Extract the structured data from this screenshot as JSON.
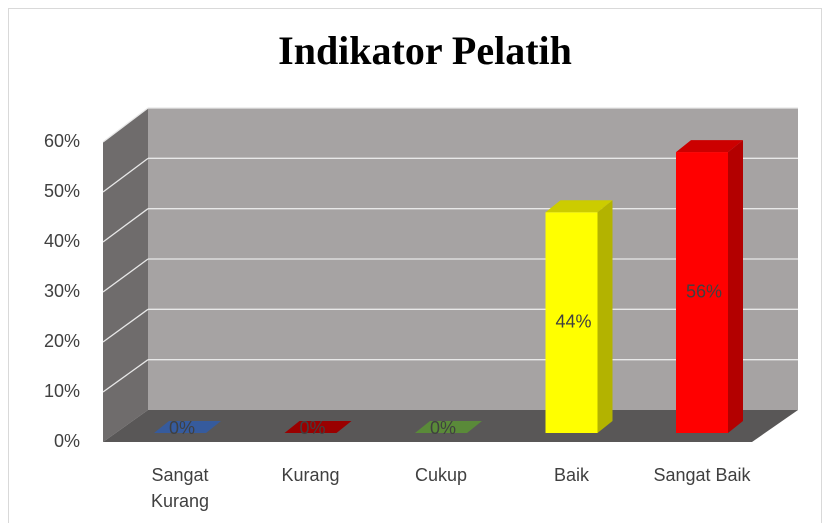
{
  "chart_data": {
    "type": "bar3d",
    "title": "Indikator Pelatih",
    "categories": [
      "Sangat Kurang",
      "Kurang",
      "Cukup",
      "Baik",
      "Sangat Baik"
    ],
    "values": [
      0,
      0,
      0,
      44,
      56
    ],
    "value_labels": [
      "0%",
      "0%",
      "0%",
      "44%",
      "56%"
    ],
    "colors": [
      "#4472c4",
      "#c00000",
      "#70ad47",
      "#ffff00",
      "#ff0000"
    ],
    "ylim": [
      0,
      60
    ],
    "yticks": [
      {
        "value": 0,
        "label": "0%"
      },
      {
        "value": 10,
        "label": "10%"
      },
      {
        "value": 20,
        "label": "20%"
      },
      {
        "value": 30,
        "label": "30%"
      },
      {
        "value": 40,
        "label": "40%"
      },
      {
        "value": 50,
        "label": "50%"
      },
      {
        "value": 60,
        "label": "60%"
      }
    ],
    "grid": true
  }
}
